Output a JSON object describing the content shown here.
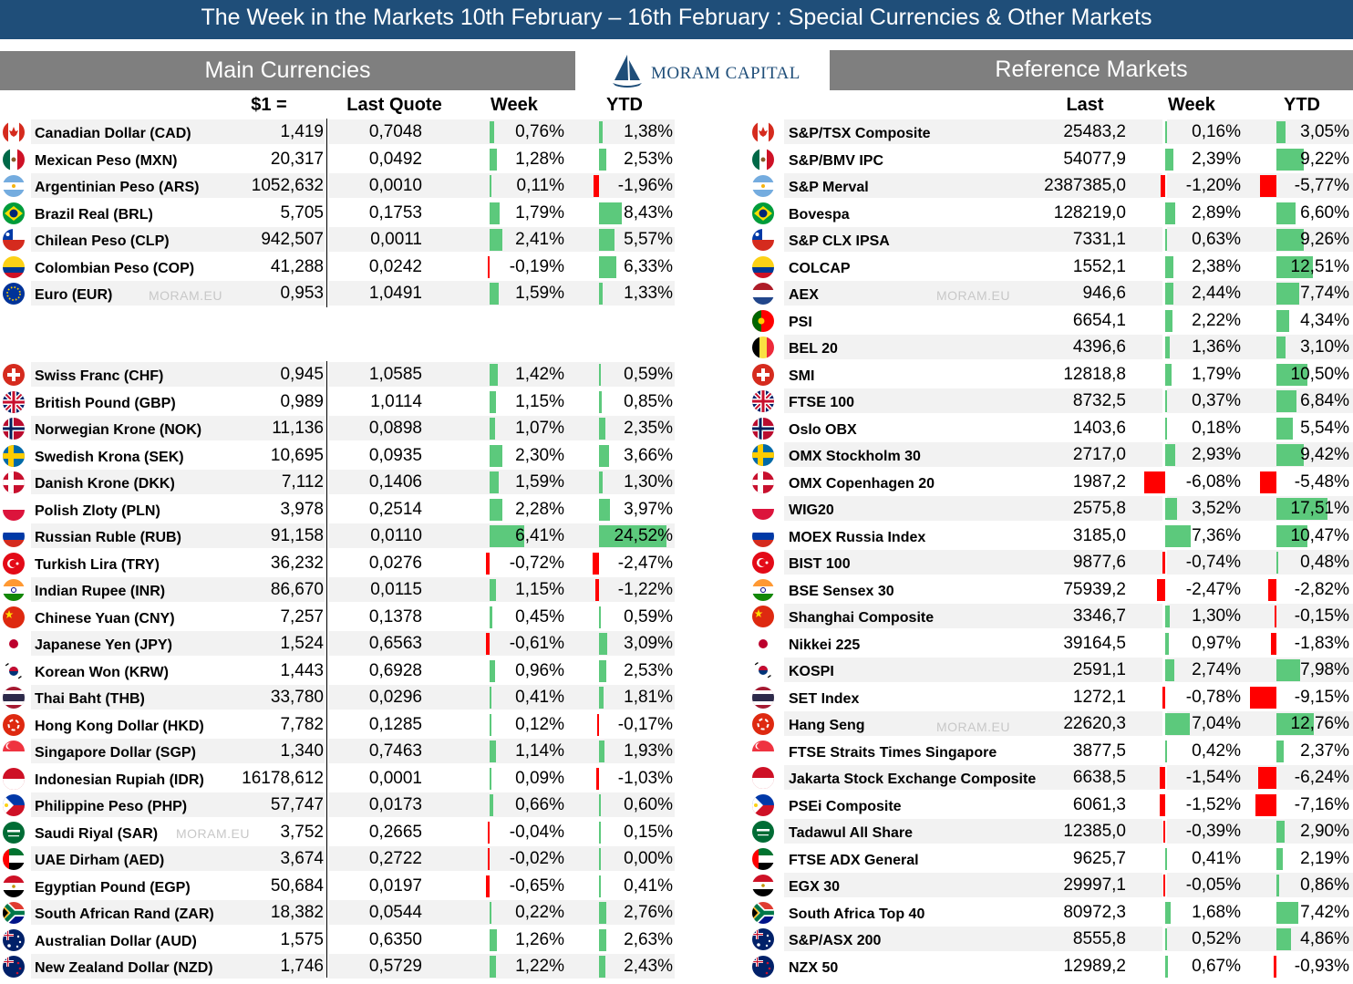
{
  "title": "The Week in the Markets 10th February – 16th February :  Special Currencies & Other Markets",
  "left_header": "Main Currencies",
  "right_header": "Reference Markets",
  "logo_text": "MORAM CAPITAL",
  "watermark": "MORAM.EU",
  "colors": {
    "banner": "#1f4e79",
    "header": "#7f7f7f",
    "positive": "#5cc97c",
    "negative": "#ff0000",
    "band": "#f2f2f2"
  },
  "left_columns": {
    "rate": "$1 =",
    "quote": "Last Quote",
    "week": "Week",
    "ytd": "YTD"
  },
  "right_columns": {
    "last": "Last",
    "week": "Week",
    "ytd": "YTD"
  },
  "currencies_group1": [
    {
      "flag": "ca",
      "name": "Canadian Dollar (CAD)",
      "rate": "1,419",
      "quote": "0,7048",
      "week": "0,76%",
      "ytd": "1,38%",
      "week_val": 0.76,
      "ytd_val": 1.38
    },
    {
      "flag": "mx",
      "name": "Mexican Peso (MXN)",
      "rate": "20,317",
      "quote": "0,0492",
      "week": "1,28%",
      "ytd": "2,53%",
      "week_val": 1.28,
      "ytd_val": 2.53
    },
    {
      "flag": "ar",
      "name": "Argentinian Peso (ARS)",
      "rate": "1052,632",
      "quote": "0,0010",
      "week": "0,11%",
      "ytd": "-1,96%",
      "week_val": 0.11,
      "ytd_val": -1.96
    },
    {
      "flag": "br",
      "name": "Brazil Real (BRL)",
      "rate": "5,705",
      "quote": "0,1753",
      "week": "1,79%",
      "ytd": "8,43%",
      "week_val": 1.79,
      "ytd_val": 8.43
    },
    {
      "flag": "cl",
      "name": "Chilean Peso (CLP)",
      "rate": "942,507",
      "quote": "0,0011",
      "week": "2,41%",
      "ytd": "5,57%",
      "week_val": 2.41,
      "ytd_val": 5.57
    },
    {
      "flag": "co",
      "name": "Colombian Peso (COP)",
      "rate": "41,288",
      "quote": "0,0242",
      "week": "-0,19%",
      "ytd": "6,33%",
      "week_val": -0.19,
      "ytd_val": 6.33
    },
    {
      "flag": "eu",
      "name": "Euro (EUR)",
      "rate": "0,953",
      "quote": "1,0491",
      "week": "1,59%",
      "ytd": "1,33%",
      "week_val": 1.59,
      "ytd_val": 1.33
    }
  ],
  "currencies_group2": [
    {
      "flag": "ch",
      "name": "Swiss Franc (CHF)",
      "rate": "0,945",
      "quote": "1,0585",
      "week": "1,42%",
      "ytd": "0,59%",
      "week_val": 1.42,
      "ytd_val": 0.59
    },
    {
      "flag": "gb",
      "name": "British Pound (GBP)",
      "rate": "0,989",
      "quote": "1,0114",
      "week": "1,15%",
      "ytd": "0,85%",
      "week_val": 1.15,
      "ytd_val": 0.85
    },
    {
      "flag": "no",
      "name": "Norwegian Krone (NOK)",
      "rate": "11,136",
      "quote": "0,0898",
      "week": "1,07%",
      "ytd": "2,35%",
      "week_val": 1.07,
      "ytd_val": 2.35
    },
    {
      "flag": "se",
      "name": "Swedish Krona (SEK)",
      "rate": "10,695",
      "quote": "0,0935",
      "week": "2,30%",
      "ytd": "3,66%",
      "week_val": 2.3,
      "ytd_val": 3.66
    },
    {
      "flag": "dk",
      "name": "Danish Krone (DKK)",
      "rate": "7,112",
      "quote": "0,1406",
      "week": "1,59%",
      "ytd": "1,30%",
      "week_val": 1.59,
      "ytd_val": 1.3
    },
    {
      "flag": "pl",
      "name": "Polish Zloty (PLN)",
      "rate": "3,978",
      "quote": "0,2514",
      "week": "2,28%",
      "ytd": "3,97%",
      "week_val": 2.28,
      "ytd_val": 3.97
    },
    {
      "flag": "ru",
      "name": "Russian Ruble (RUB)",
      "rate": "91,158",
      "quote": "0,0110",
      "week": "6,41%",
      "ytd": "24,52%",
      "week_val": 6.41,
      "ytd_val": 24.52
    },
    {
      "flag": "tr",
      "name": "Turkish Lira (TRY)",
      "rate": "36,232",
      "quote": "0,0276",
      "week": "-0,72%",
      "ytd": "-2,47%",
      "week_val": -0.72,
      "ytd_val": -2.47
    },
    {
      "flag": "in",
      "name": "Indian Rupee (INR)",
      "rate": "86,670",
      "quote": "0,0115",
      "week": "1,15%",
      "ytd": "-1,22%",
      "week_val": 1.15,
      "ytd_val": -1.22
    },
    {
      "flag": "cn",
      "name": "Chinese Yuan (CNY)",
      "rate": "7,257",
      "quote": "0,1378",
      "week": "0,45%",
      "ytd": "0,59%",
      "week_val": 0.45,
      "ytd_val": 0.59
    },
    {
      "flag": "jp",
      "name": "Japanese Yen (JPY)",
      "rate": "1,524",
      "quote": "0,6563",
      "week": "-0,61%",
      "ytd": "3,09%",
      "week_val": -0.61,
      "ytd_val": 3.09
    },
    {
      "flag": "kr",
      "name": "Korean Won (KRW)",
      "rate": "1,443",
      "quote": "0,6928",
      "week": "0,96%",
      "ytd": "2,53%",
      "week_val": 0.96,
      "ytd_val": 2.53
    },
    {
      "flag": "th",
      "name": "Thai Baht (THB)",
      "rate": "33,780",
      "quote": "0,0296",
      "week": "0,41%",
      "ytd": "1,81%",
      "week_val": 0.41,
      "ytd_val": 1.81
    },
    {
      "flag": "hk",
      "name": "Hong Kong Dollar (HKD)",
      "rate": "7,782",
      "quote": "0,1285",
      "week": "0,12%",
      "ytd": "-0,17%",
      "week_val": 0.12,
      "ytd_val": -0.17
    },
    {
      "flag": "sg",
      "name": "Singapore Dollar (SGP)",
      "rate": "1,340",
      "quote": "0,7463",
      "week": "1,14%",
      "ytd": "1,93%",
      "week_val": 1.14,
      "ytd_val": 1.93
    },
    {
      "flag": "id",
      "name": "Indonesian Rupiah (IDR)",
      "rate": "16178,612",
      "quote": "0,0001",
      "week": "0,09%",
      "ytd": "-1,03%",
      "week_val": 0.09,
      "ytd_val": -1.03
    },
    {
      "flag": "ph",
      "name": "Philippine Peso (PHP)",
      "rate": "57,747",
      "quote": "0,0173",
      "week": "0,66%",
      "ytd": "0,60%",
      "week_val": 0.66,
      "ytd_val": 0.6
    },
    {
      "flag": "sa",
      "name": "Saudi Riyal (SAR)",
      "rate": "3,752",
      "quote": "0,2665",
      "week": "-0,04%",
      "ytd": "0,15%",
      "week_val": -0.04,
      "ytd_val": 0.15
    },
    {
      "flag": "ae",
      "name": "UAE Dirham (AED)",
      "rate": "3,674",
      "quote": "0,2722",
      "week": "-0,02%",
      "ytd": "0,00%",
      "week_val": -0.02,
      "ytd_val": 0.0
    },
    {
      "flag": "eg",
      "name": "Egyptian Pound (EGP)",
      "rate": "50,684",
      "quote": "0,0197",
      "week": "-0,65%",
      "ytd": "0,41%",
      "week_val": -0.65,
      "ytd_val": 0.41
    },
    {
      "flag": "za",
      "name": "South African Rand (ZAR)",
      "rate": "18,382",
      "quote": "0,0544",
      "week": "0,22%",
      "ytd": "2,76%",
      "week_val": 0.22,
      "ytd_val": 2.76
    },
    {
      "flag": "au",
      "name": "Australian Dollar (AUD)",
      "rate": "1,575",
      "quote": "0,6350",
      "week": "1,26%",
      "ytd": "2,63%",
      "week_val": 1.26,
      "ytd_val": 2.63
    },
    {
      "flag": "nz",
      "name": "New Zealand Dollar (NZD)",
      "rate": "1,746",
      "quote": "0,5729",
      "week": "1,22%",
      "ytd": "2,43%",
      "week_val": 1.22,
      "ytd_val": 2.43
    }
  ],
  "markets": [
    {
      "flag": "ca",
      "name": "S&P/TSX Composite",
      "last": "25483,2",
      "week": "0,16%",
      "ytd": "3,05%",
      "week_val": 0.16,
      "ytd_val": 3.05
    },
    {
      "flag": "mx",
      "name": "S&P/BMV IPC",
      "last": "54077,9",
      "week": "2,39%",
      "ytd": "9,22%",
      "week_val": 2.39,
      "ytd_val": 9.22
    },
    {
      "flag": "ar",
      "name": "S&P Merval",
      "last": "2387385,0",
      "week": "-1,20%",
      "ytd": "-5,77%",
      "week_val": -1.2,
      "ytd_val": -5.77
    },
    {
      "flag": "br",
      "name": "Bovespa",
      "last": "128219,0",
      "week": "2,89%",
      "ytd": "6,60%",
      "week_val": 2.89,
      "ytd_val": 6.6
    },
    {
      "flag": "cl",
      "name": "S&P CLX IPSA",
      "last": "7331,1",
      "week": "0,63%",
      "ytd": "9,26%",
      "week_val": 0.63,
      "ytd_val": 9.26
    },
    {
      "flag": "co",
      "name": "COLCAP",
      "last": "1552,1",
      "week": "2,38%",
      "ytd": "12,51%",
      "week_val": 2.38,
      "ytd_val": 12.51
    },
    {
      "flag": "nl",
      "name": "AEX",
      "last": "946,6",
      "week": "2,44%",
      "ytd": "7,74%",
      "week_val": 2.44,
      "ytd_val": 7.74
    },
    {
      "flag": "pt",
      "name": "PSI",
      "last": "6654,1",
      "week": "2,22%",
      "ytd": "4,34%",
      "week_val": 2.22,
      "ytd_val": 4.34
    },
    {
      "flag": "be",
      "name": "BEL 20",
      "last": "4396,6",
      "week": "1,36%",
      "ytd": "3,10%",
      "week_val": 1.36,
      "ytd_val": 3.1
    },
    {
      "flag": "ch",
      "name": "SMI",
      "last": "12818,8",
      "week": "1,79%",
      "ytd": "10,50%",
      "week_val": 1.79,
      "ytd_val": 10.5
    },
    {
      "flag": "gb",
      "name": "FTSE 100",
      "last": "8732,5",
      "week": "0,37%",
      "ytd": "6,84%",
      "week_val": 0.37,
      "ytd_val": 6.84
    },
    {
      "flag": "no",
      "name": "Oslo OBX",
      "last": "1403,6",
      "week": "0,18%",
      "ytd": "5,54%",
      "week_val": 0.18,
      "ytd_val": 5.54
    },
    {
      "flag": "se",
      "name": "OMX Stockholm 30",
      "last": "2717,0",
      "week": "2,93%",
      "ytd": "9,42%",
      "week_val": 2.93,
      "ytd_val": 9.42
    },
    {
      "flag": "dk",
      "name": "OMX Copenhagen 20",
      "last": "1987,2",
      "week": "-6,08%",
      "ytd": "-5,48%",
      "week_val": -6.08,
      "ytd_val": -5.48
    },
    {
      "flag": "pl",
      "name": "WIG20",
      "last": "2575,8",
      "week": "3,52%",
      "ytd": "17,51%",
      "week_val": 3.52,
      "ytd_val": 17.51
    },
    {
      "flag": "ru",
      "name": "MOEX Russia Index",
      "last": "3185,0",
      "week": "7,36%",
      "ytd": "10,47%",
      "week_val": 7.36,
      "ytd_val": 10.47
    },
    {
      "flag": "tr",
      "name": "BIST 100",
      "last": "9877,6",
      "week": "-0,74%",
      "ytd": "0,48%",
      "week_val": -0.74,
      "ytd_val": 0.48
    },
    {
      "flag": "in",
      "name": "BSE Sensex 30",
      "last": "75939,2",
      "week": "-2,47%",
      "ytd": "-2,82%",
      "week_val": -2.47,
      "ytd_val": -2.82
    },
    {
      "flag": "cn",
      "name": "Shanghai Composite",
      "last": "3346,7",
      "week": "1,30%",
      "ytd": "-0,15%",
      "week_val": 1.3,
      "ytd_val": -0.15
    },
    {
      "flag": "jp",
      "name": "Nikkei 225",
      "last": "39164,5",
      "week": "0,97%",
      "ytd": "-1,83%",
      "week_val": 0.97,
      "ytd_val": -1.83
    },
    {
      "flag": "kr",
      "name": "KOSPI",
      "last": "2591,1",
      "week": "2,74%",
      "ytd": "7,98%",
      "week_val": 2.74,
      "ytd_val": 7.98
    },
    {
      "flag": "th",
      "name": "SET Index",
      "last": "1272,1",
      "week": "-0,78%",
      "ytd": "-9,15%",
      "week_val": -0.78,
      "ytd_val": -9.15
    },
    {
      "flag": "hk",
      "name": "Hang Seng",
      "last": "22620,3",
      "week": "7,04%",
      "ytd": "12,76%",
      "week_val": 7.04,
      "ytd_val": 12.76
    },
    {
      "flag": "sg",
      "name": "FTSE Straits Times Singapore",
      "last": "3877,5",
      "week": "0,42%",
      "ytd": "2,37%",
      "week_val": 0.42,
      "ytd_val": 2.37
    },
    {
      "flag": "id",
      "name": "Jakarta Stock Exchange Composite",
      "last": "6638,5",
      "week": "-1,54%",
      "ytd": "-6,24%",
      "week_val": -1.54,
      "ytd_val": -6.24
    },
    {
      "flag": "ph",
      "name": "PSEi Composite",
      "last": "6061,3",
      "week": "-1,52%",
      "ytd": "-7,16%",
      "week_val": -1.52,
      "ytd_val": -7.16
    },
    {
      "flag": "sa",
      "name": "Tadawul All Share",
      "last": "12385,0",
      "week": "-0,39%",
      "ytd": "2,90%",
      "week_val": -0.39,
      "ytd_val": 2.9
    },
    {
      "flag": "ae",
      "name": "FTSE ADX General",
      "last": "9625,7",
      "week": "0,41%",
      "ytd": "2,19%",
      "week_val": 0.41,
      "ytd_val": 2.19
    },
    {
      "flag": "eg",
      "name": "EGX 30",
      "last": "29997,1",
      "week": "-0,05%",
      "ytd": "0,86%",
      "week_val": -0.05,
      "ytd_val": 0.86
    },
    {
      "flag": "za",
      "name": "South Africa Top 40",
      "last": "80972,3",
      "week": "1,68%",
      "ytd": "7,42%",
      "week_val": 1.68,
      "ytd_val": 7.42
    },
    {
      "flag": "au",
      "name": "S&P/ASX 200",
      "last": "8555,8",
      "week": "0,52%",
      "ytd": "4,86%",
      "week_val": 0.52,
      "ytd_val": 4.86
    },
    {
      "flag": "nz",
      "name": "NZX 50",
      "last": "12989,2",
      "week": "0,67%",
      "ytd": "-0,93%",
      "week_val": 0.67,
      "ytd_val": -0.93
    }
  ]
}
